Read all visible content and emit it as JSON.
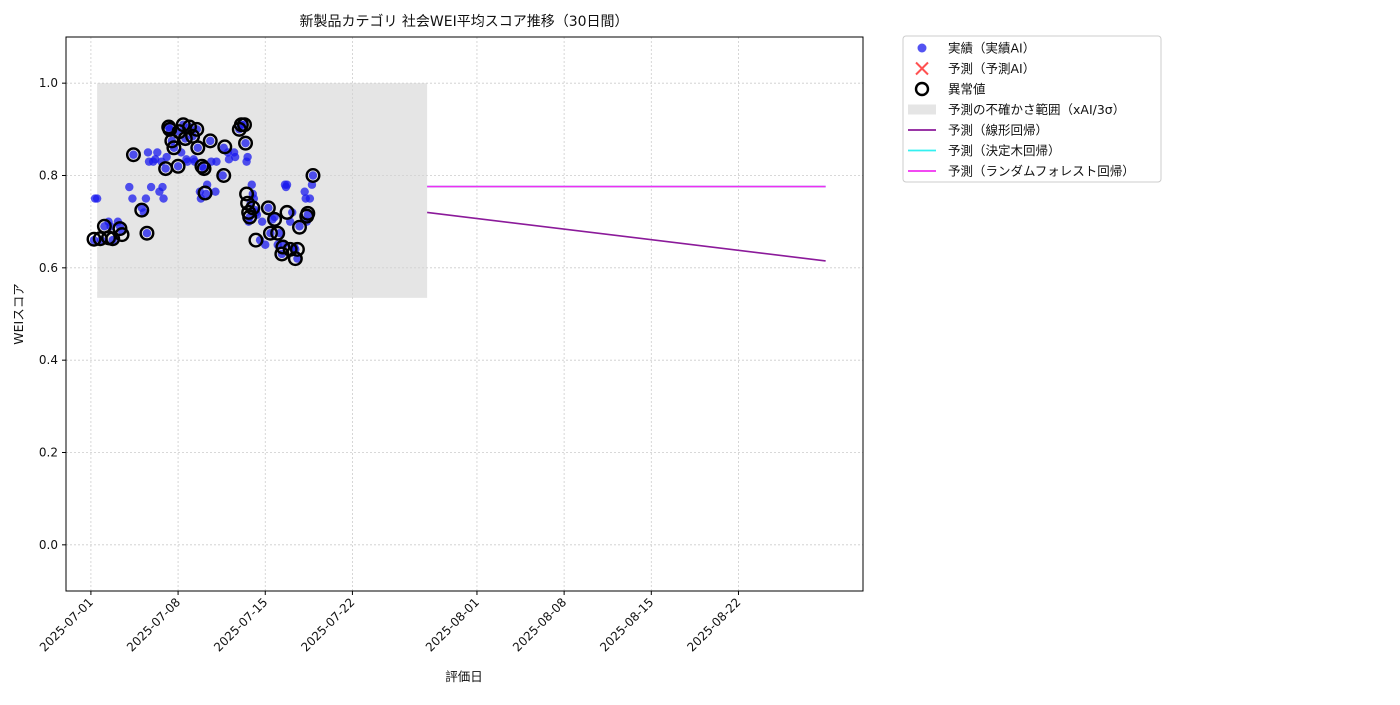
{
  "chart_data": {
    "type": "scatter",
    "title": "新製品カテゴリ 社会WEI平均スコア推移（30日間）",
    "xlabel": "評価日",
    "ylabel": "WEIスコア",
    "xlim": [
      "2025-06-29",
      "2025-09-01"
    ],
    "ylim": [
      -0.1,
      1.1
    ],
    "x_ticks": [
      "2025-07-01",
      "2025-07-08",
      "2025-07-15",
      "2025-07-22",
      "2025-08-01",
      "2025-08-08",
      "2025-08-15",
      "2025-08-22"
    ],
    "y_ticks": [
      "0.0",
      "0.2",
      "0.4",
      "0.6",
      "0.8",
      "1.0"
    ],
    "grid": true,
    "legend_position": "outside upper right",
    "colors": {
      "actual": "#1a1aee",
      "predicted": "#ff3333",
      "anomaly": "#000000",
      "band": "#d3d3d3",
      "linear": "#8b1a9a",
      "tree": "#33f0f0",
      "forest": "#f030f0"
    },
    "legend": [
      {
        "key": "actual",
        "label": "実績（実績AI）",
        "marker": "dot"
      },
      {
        "key": "predicted",
        "label": "予測（予測AI）",
        "marker": "x"
      },
      {
        "key": "anomaly",
        "label": "異常値",
        "marker": "ring"
      },
      {
        "key": "band",
        "label": "予測の不確かさ範囲（xAI/3σ）",
        "marker": "patch"
      },
      {
        "key": "linear",
        "label": "予測（線形回帰）",
        "marker": "line"
      },
      {
        "key": "tree",
        "label": "予測（決定木回帰）",
        "marker": "line"
      },
      {
        "key": "forest",
        "label": "予測（ランダムフォレスト回帰）",
        "marker": "line"
      }
    ],
    "uncertainty_band": {
      "x_start": "2025-07-01 12:00",
      "x_end": "2025-07-28",
      "y_low": 0.535,
      "y_high": 1.0
    },
    "series": [
      {
        "name": "実績（実績AI）",
        "type": "scatter",
        "points": [
          [
            "2025-07-01 06:00",
            0.66
          ],
          [
            "2025-07-01 08:00",
            0.75
          ],
          [
            "2025-07-01 12:00",
            0.75
          ],
          [
            "2025-07-01 20:00",
            0.66
          ],
          [
            "2025-07-02 02:00",
            0.69
          ],
          [
            "2025-07-02 10:00",
            0.7
          ],
          [
            "2025-07-02 14:00",
            0.69
          ],
          [
            "2025-07-02 18:00",
            0.66
          ],
          [
            "2025-07-03 04:00",
            0.7
          ],
          [
            "2025-07-03 08:00",
            0.69
          ],
          [
            "2025-07-03 12:00",
            0.68
          ],
          [
            "2025-07-04 02:00",
            0.775
          ],
          [
            "2025-07-04 08:00",
            0.75
          ],
          [
            "2025-07-04 10:00",
            0.845
          ],
          [
            "2025-07-05 02:00",
            0.73
          ],
          [
            "2025-07-05 06:00",
            0.72
          ],
          [
            "2025-07-05 10:00",
            0.75
          ],
          [
            "2025-07-05 12:00",
            0.675
          ],
          [
            "2025-07-05 14:00",
            0.85
          ],
          [
            "2025-07-05 16:00",
            0.83
          ],
          [
            "2025-07-05 20:00",
            0.775
          ],
          [
            "2025-07-06 00:00",
            0.83
          ],
          [
            "2025-07-06 04:00",
            0.835
          ],
          [
            "2025-07-06 08:00",
            0.85
          ],
          [
            "2025-07-06 12:00",
            0.765
          ],
          [
            "2025-07-06 16:00",
            0.83
          ],
          [
            "2025-07-06 18:00",
            0.775
          ],
          [
            "2025-07-06 20:00",
            0.75
          ],
          [
            "2025-07-07 00:00",
            0.815
          ],
          [
            "2025-07-07 02:00",
            0.84
          ],
          [
            "2025-07-07 06:00",
            0.905
          ],
          [
            "2025-07-07 08:00",
            0.9
          ],
          [
            "2025-07-07 12:00",
            0.875
          ],
          [
            "2025-07-07 16:00",
            0.86
          ],
          [
            "2025-07-08 00:00",
            0.82
          ],
          [
            "2025-07-08 02:00",
            0.895
          ],
          [
            "2025-07-08 06:00",
            0.85
          ],
          [
            "2025-07-08 10:00",
            0.91
          ],
          [
            "2025-07-08 14:00",
            0.88
          ],
          [
            "2025-07-08 16:00",
            0.835
          ],
          [
            "2025-07-08 18:00",
            0.83
          ],
          [
            "2025-07-08 22:00",
            0.905
          ],
          [
            "2025-07-09 04:00",
            0.885
          ],
          [
            "2025-07-09 06:00",
            0.835
          ],
          [
            "2025-07-09 08:00",
            0.83
          ],
          [
            "2025-07-09 12:00",
            0.9
          ],
          [
            "2025-07-09 14:00",
            0.86
          ],
          [
            "2025-07-09 18:00",
            0.765
          ],
          [
            "2025-07-09 20:00",
            0.75
          ],
          [
            "2025-07-09 22:00",
            0.82
          ],
          [
            "2025-07-10 02:00",
            0.815
          ],
          [
            "2025-07-10 06:00",
            0.76
          ],
          [
            "2025-07-10 08:00",
            0.78
          ],
          [
            "2025-07-10 14:00",
            0.875
          ],
          [
            "2025-07-10 16:00",
            0.83
          ],
          [
            "2025-07-11 00:00",
            0.765
          ],
          [
            "2025-07-11 02:00",
            0.83
          ],
          [
            "2025-07-11 14:00",
            0.8
          ],
          [
            "2025-07-11 16:00",
            0.86
          ],
          [
            "2025-07-12 00:00",
            0.85
          ],
          [
            "2025-07-12 02:00",
            0.835
          ],
          [
            "2025-07-12 12:00",
            0.85
          ],
          [
            "2025-07-12 14:00",
            0.84
          ],
          [
            "2025-07-12 22:00",
            0.9
          ],
          [
            "2025-07-13 02:00",
            0.91
          ],
          [
            "2025-07-13 08:00",
            0.91
          ],
          [
            "2025-07-13 10:00",
            0.87
          ],
          [
            "2025-07-13 12:00",
            0.83
          ],
          [
            "2025-07-13 14:00",
            0.84
          ],
          [
            "2025-07-13 16:00",
            0.7
          ],
          [
            "2025-07-13 18:00",
            0.71
          ],
          [
            "2025-07-13 20:00",
            0.74
          ],
          [
            "2025-07-13 22:00",
            0.78
          ],
          [
            "2025-07-14 00:00",
            0.76
          ],
          [
            "2025-07-14 02:00",
            0.75
          ],
          [
            "2025-07-14 04:00",
            0.725
          ],
          [
            "2025-07-14 06:00",
            0.72
          ],
          [
            "2025-07-14 08:00",
            0.715
          ],
          [
            "2025-07-14 14:00",
            0.66
          ],
          [
            "2025-07-14 18:00",
            0.7
          ],
          [
            "2025-07-15 00:00",
            0.65
          ],
          [
            "2025-07-15 06:00",
            0.73
          ],
          [
            "2025-07-15 10:00",
            0.675
          ],
          [
            "2025-07-15 14:00",
            0.705
          ],
          [
            "2025-07-15 18:00",
            0.71
          ],
          [
            "2025-07-16 00:00",
            0.65
          ],
          [
            "2025-07-16 04:00",
            0.675
          ],
          [
            "2025-07-16 08:00",
            0.63
          ],
          [
            "2025-07-16 12:00",
            0.65
          ],
          [
            "2025-07-16 14:00",
            0.78
          ],
          [
            "2025-07-16 16:00",
            0.775
          ],
          [
            "2025-07-16 18:00",
            0.78
          ],
          [
            "2025-07-17 00:00",
            0.7
          ],
          [
            "2025-07-17 04:00",
            0.72
          ],
          [
            "2025-07-17 08:00",
            0.645
          ],
          [
            "2025-07-17 10:00",
            0.64
          ],
          [
            "2025-07-17 14:00",
            0.62
          ],
          [
            "2025-07-17 18:00",
            0.69
          ],
          [
            "2025-07-18 04:00",
            0.765
          ],
          [
            "2025-07-18 06:00",
            0.75
          ],
          [
            "2025-07-18 08:00",
            0.7
          ],
          [
            "2025-07-18 10:00",
            0.715
          ],
          [
            "2025-07-18 14:00",
            0.75
          ],
          [
            "2025-07-18 18:00",
            0.78
          ],
          [
            "2025-07-18 20:00",
            0.8
          ]
        ]
      },
      {
        "name": "異常値",
        "type": "scatter",
        "points": [
          [
            "2025-07-01 06:00",
            0.662
          ],
          [
            "2025-07-01 18:00",
            0.663
          ],
          [
            "2025-07-02 02:00",
            0.69
          ],
          [
            "2025-07-02 10:00",
            0.665
          ],
          [
            "2025-07-02 18:00",
            0.663
          ],
          [
            "2025-07-03 08:00",
            0.685
          ],
          [
            "2025-07-03 12:00",
            0.672
          ],
          [
            "2025-07-04 10:00",
            0.845
          ],
          [
            "2025-07-05 02:00",
            0.725
          ],
          [
            "2025-07-05 12:00",
            0.675
          ],
          [
            "2025-07-07 00:00",
            0.815
          ],
          [
            "2025-07-07 06:00",
            0.905
          ],
          [
            "2025-07-07 08:00",
            0.9
          ],
          [
            "2025-07-07 12:00",
            0.875
          ],
          [
            "2025-07-07 16:00",
            0.86
          ],
          [
            "2025-07-08 00:00",
            0.82
          ],
          [
            "2025-07-08 02:00",
            0.895
          ],
          [
            "2025-07-08 10:00",
            0.91
          ],
          [
            "2025-07-08 14:00",
            0.88
          ],
          [
            "2025-07-08 22:00",
            0.905
          ],
          [
            "2025-07-09 04:00",
            0.885
          ],
          [
            "2025-07-09 12:00",
            0.9
          ],
          [
            "2025-07-09 14:00",
            0.86
          ],
          [
            "2025-07-09 22:00",
            0.82
          ],
          [
            "2025-07-10 02:00",
            0.815
          ],
          [
            "2025-07-10 04:00",
            0.762
          ],
          [
            "2025-07-10 14:00",
            0.875
          ],
          [
            "2025-07-11 16:00",
            0.8
          ],
          [
            "2025-07-11 18:00",
            0.862
          ],
          [
            "2025-07-12 22:00",
            0.9
          ],
          [
            "2025-07-13 02:00",
            0.91
          ],
          [
            "2025-07-13 08:00",
            0.91
          ],
          [
            "2025-07-13 10:00",
            0.87
          ],
          [
            "2025-07-13 12:00",
            0.76
          ],
          [
            "2025-07-13 14:00",
            0.74
          ],
          [
            "2025-07-13 16:00",
            0.72
          ],
          [
            "2025-07-13 18:00",
            0.71
          ],
          [
            "2025-07-14 00:00",
            0.73
          ],
          [
            "2025-07-14 06:00",
            0.66
          ],
          [
            "2025-07-15 06:00",
            0.73
          ],
          [
            "2025-07-15 10:00",
            0.675
          ],
          [
            "2025-07-15 18:00",
            0.705
          ],
          [
            "2025-07-16 00:00",
            0.675
          ],
          [
            "2025-07-16 08:00",
            0.63
          ],
          [
            "2025-07-16 10:00",
            0.645
          ],
          [
            "2025-07-16 18:00",
            0.72
          ],
          [
            "2025-07-17 00:00",
            0.64
          ],
          [
            "2025-07-17 10:00",
            0.62
          ],
          [
            "2025-07-17 14:00",
            0.64
          ],
          [
            "2025-07-17 18:00",
            0.688
          ],
          [
            "2025-07-18 08:00",
            0.712
          ],
          [
            "2025-07-18 10:00",
            0.718
          ],
          [
            "2025-07-18 20:00",
            0.8
          ]
        ]
      },
      {
        "name": "予測（線形回帰）",
        "type": "line",
        "points": [
          [
            "2025-07-28",
            0.72
          ],
          [
            "2025-08-29",
            0.615
          ]
        ]
      },
      {
        "name": "予測（決定木回帰）",
        "type": "line",
        "points": [
          [
            "2025-07-28",
            0.776
          ],
          [
            "2025-08-29",
            0.776
          ]
        ]
      },
      {
        "name": "予測（ランダムフォレスト回帰）",
        "type": "line",
        "points": [
          [
            "2025-07-28",
            0.776
          ],
          [
            "2025-08-29",
            0.776
          ]
        ]
      }
    ]
  }
}
